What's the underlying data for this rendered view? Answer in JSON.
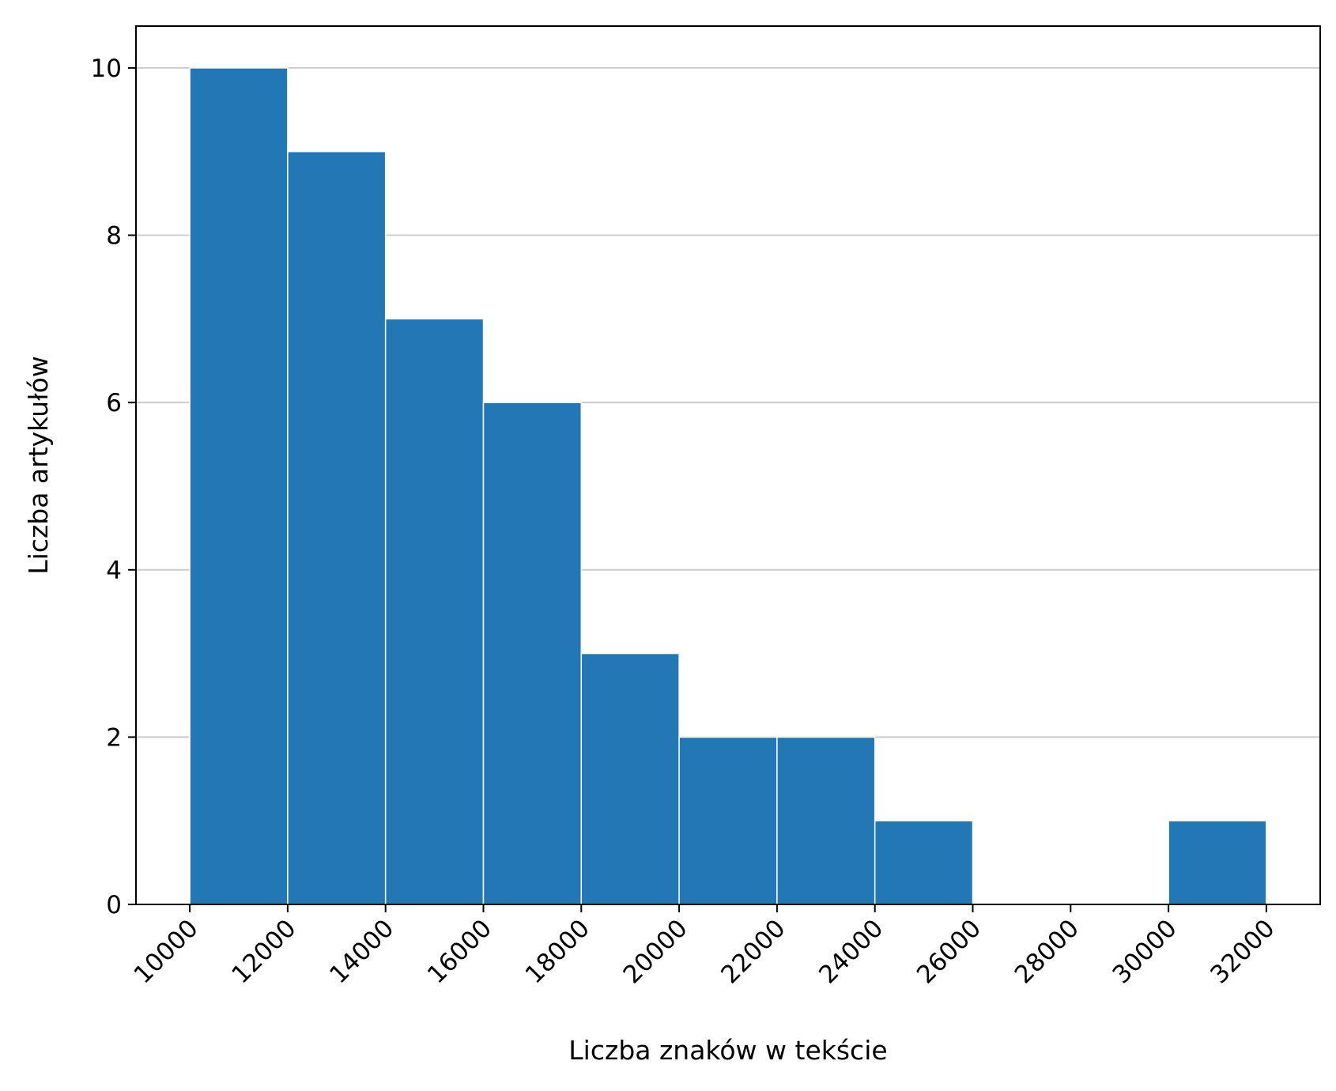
{
  "chart_data": {
    "type": "bar",
    "subtype": "histogram",
    "title": "",
    "xlabel": "Liczba znaków w tekście",
    "ylabel": "Liczba artykułów",
    "bins": [
      {
        "x0": 10000,
        "x1": 12000,
        "count": 10
      },
      {
        "x0": 12000,
        "x1": 14000,
        "count": 9
      },
      {
        "x0": 14000,
        "x1": 16000,
        "count": 7
      },
      {
        "x0": 16000,
        "x1": 18000,
        "count": 6
      },
      {
        "x0": 18000,
        "x1": 20000,
        "count": 3
      },
      {
        "x0": 20000,
        "x1": 22000,
        "count": 2
      },
      {
        "x0": 22000,
        "x1": 24000,
        "count": 2
      },
      {
        "x0": 24000,
        "x1": 26000,
        "count": 1
      },
      {
        "x0": 26000,
        "x1": 28000,
        "count": 0
      },
      {
        "x0": 28000,
        "x1": 30000,
        "count": 0
      },
      {
        "x0": 30000,
        "x1": 32000,
        "count": 1
      }
    ],
    "x_ticks": [
      10000,
      12000,
      14000,
      16000,
      18000,
      20000,
      22000,
      24000,
      26000,
      28000,
      30000,
      32000
    ],
    "y_ticks": [
      0,
      2,
      4,
      6,
      8,
      10
    ],
    "xlim": [
      8900,
      33100
    ],
    "ylim": [
      0,
      10.5
    ],
    "grid": "horizontal",
    "legend": "none",
    "colors": {
      "bar": "#2178b4",
      "bar_edge": "#ffffff",
      "grid": "#cccccc",
      "axis": "#000000"
    }
  }
}
